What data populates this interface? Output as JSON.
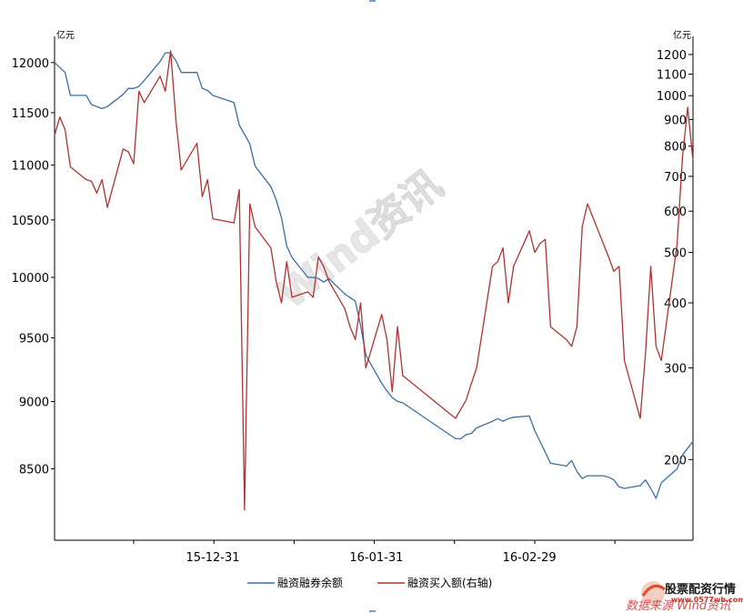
{
  "chart_data": {
    "type": "line",
    "unit_left": "亿元",
    "unit_right": "亿元",
    "x_tick_labels": [
      "15-12-31",
      "16-01-31",
      "16-02-29"
    ],
    "x_range": [
      "2015-12-01",
      "2016-03-31"
    ],
    "y_left": {
      "range": [
        8000,
        12270
      ],
      "ticks": [
        8500,
        9000,
        9500,
        10000,
        10500,
        11000,
        11500,
        12000
      ],
      "scale": "log"
    },
    "y_right": {
      "range": [
        140,
        1300
      ],
      "ticks": [
        200,
        300,
        400,
        500,
        600,
        700,
        800,
        900,
        1000,
        1100,
        1200
      ],
      "scale": "log"
    },
    "grid": false,
    "legend_placement": "bottom",
    "series": [
      {
        "name": "融资融券余额",
        "axis": "left",
        "color": "#3b6fa0",
        "points": [
          [
            "2015-12-01",
            12000
          ],
          [
            "2015-12-02",
            11950
          ],
          [
            "2015-12-03",
            11900
          ],
          [
            "2015-12-04",
            11670
          ],
          [
            "2015-12-07",
            11670
          ],
          [
            "2015-12-08",
            11580
          ],
          [
            "2015-12-09",
            11560
          ],
          [
            "2015-12-10",
            11540
          ],
          [
            "2015-12-11",
            11560
          ],
          [
            "2015-12-14",
            11680
          ],
          [
            "2015-12-15",
            11740
          ],
          [
            "2015-12-16",
            11740
          ],
          [
            "2015-12-17",
            11760
          ],
          [
            "2015-12-18",
            11820
          ],
          [
            "2015-12-21",
            12010
          ],
          [
            "2015-12-22",
            12100
          ],
          [
            "2015-12-23",
            12100
          ],
          [
            "2015-12-24",
            12020
          ],
          [
            "2015-12-25",
            11900
          ],
          [
            "2015-12-28",
            11900
          ],
          [
            "2015-12-29",
            11740
          ],
          [
            "2015-12-30",
            11720
          ],
          [
            "2015-12-31",
            11670
          ],
          [
            "2016-01-04",
            11600
          ],
          [
            "2016-01-05",
            11380
          ],
          [
            "2016-01-06",
            11290
          ],
          [
            "2016-01-07",
            11200
          ],
          [
            "2016-01-08",
            10990
          ],
          [
            "2016-01-11",
            10800
          ],
          [
            "2016-01-12",
            10680
          ],
          [
            "2016-01-13",
            10520
          ],
          [
            "2016-01-14",
            10270
          ],
          [
            "2016-01-15",
            10170
          ],
          [
            "2016-01-18",
            10000
          ],
          [
            "2016-01-19",
            10000
          ],
          [
            "2016-01-20",
            9990
          ],
          [
            "2016-01-21",
            9960
          ],
          [
            "2016-01-22",
            9990
          ],
          [
            "2016-01-25",
            9860
          ],
          [
            "2016-01-26",
            9830
          ],
          [
            "2016-01-27",
            9800
          ],
          [
            "2016-01-28",
            9600
          ],
          [
            "2016-01-29",
            9360
          ],
          [
            "2016-02-01",
            9140
          ],
          [
            "2016-02-02",
            9080
          ],
          [
            "2016-02-03",
            9030
          ],
          [
            "2016-02-04",
            9000
          ],
          [
            "2016-02-05",
            8990
          ],
          [
            "2016-02-15",
            8720
          ],
          [
            "2016-02-16",
            8720
          ],
          [
            "2016-02-17",
            8750
          ],
          [
            "2016-02-18",
            8760
          ],
          [
            "2016-02-19",
            8800
          ],
          [
            "2016-02-22",
            8850
          ],
          [
            "2016-02-23",
            8870
          ],
          [
            "2016-02-24",
            8850
          ],
          [
            "2016-02-25",
            8870
          ],
          [
            "2016-02-26",
            8880
          ],
          [
            "2016-02-29",
            8890
          ],
          [
            "2016-03-01",
            8780
          ],
          [
            "2016-03-02",
            8700
          ],
          [
            "2016-03-03",
            8620
          ],
          [
            "2016-03-04",
            8540
          ],
          [
            "2016-03-07",
            8520
          ],
          [
            "2016-03-08",
            8560
          ],
          [
            "2016-03-09",
            8480
          ],
          [
            "2016-03-10",
            8430
          ],
          [
            "2016-03-11",
            8450
          ],
          [
            "2016-03-14",
            8450
          ],
          [
            "2016-03-15",
            8440
          ],
          [
            "2016-03-16",
            8420
          ],
          [
            "2016-03-17",
            8370
          ],
          [
            "2016-03-18",
            8360
          ],
          [
            "2016-03-21",
            8380
          ],
          [
            "2016-03-22",
            8420
          ],
          [
            "2016-03-23",
            8360
          ],
          [
            "2016-03-24",
            8290
          ],
          [
            "2016-03-25",
            8400
          ],
          [
            "2016-03-28",
            8500
          ],
          [
            "2016-03-29",
            8600
          ],
          [
            "2016-03-30",
            8650
          ],
          [
            "2016-03-31",
            8700
          ]
        ]
      },
      {
        "name": "融资买入额(右轴)",
        "axis": "right",
        "color": "#b03232",
        "points": [
          [
            "2015-12-01",
            840
          ],
          [
            "2015-12-02",
            910
          ],
          [
            "2015-12-03",
            860
          ],
          [
            "2015-12-04",
            730
          ],
          [
            "2015-12-07",
            690
          ],
          [
            "2015-12-08",
            685
          ],
          [
            "2015-12-09",
            650
          ],
          [
            "2015-12-10",
            690
          ],
          [
            "2015-12-11",
            610
          ],
          [
            "2015-12-14",
            790
          ],
          [
            "2015-12-15",
            780
          ],
          [
            "2015-12-16",
            740
          ],
          [
            "2015-12-17",
            1020
          ],
          [
            "2015-12-18",
            970
          ],
          [
            "2015-12-21",
            1090
          ],
          [
            "2015-12-22",
            1020
          ],
          [
            "2015-12-23",
            1220
          ],
          [
            "2015-12-24",
            900
          ],
          [
            "2015-12-25",
            720
          ],
          [
            "2015-12-28",
            810
          ],
          [
            "2015-12-29",
            640
          ],
          [
            "2015-12-30",
            690
          ],
          [
            "2015-12-31",
            580
          ],
          [
            "2016-01-04",
            570
          ],
          [
            "2016-01-05",
            660
          ],
          [
            "2016-01-06",
            160
          ],
          [
            "2016-01-07",
            620
          ],
          [
            "2016-01-08",
            560
          ],
          [
            "2016-01-11",
            510
          ],
          [
            "2016-01-12",
            440
          ],
          [
            "2016-01-13",
            400
          ],
          [
            "2016-01-14",
            480
          ],
          [
            "2016-01-15",
            410
          ],
          [
            "2016-01-18",
            420
          ],
          [
            "2016-01-19",
            410
          ],
          [
            "2016-01-20",
            490
          ],
          [
            "2016-01-21",
            470
          ],
          [
            "2016-01-22",
            440
          ],
          [
            "2016-01-25",
            390
          ],
          [
            "2016-01-26",
            360
          ],
          [
            "2016-01-27",
            340
          ],
          [
            "2016-01-28",
            400
          ],
          [
            "2016-01-29",
            300
          ],
          [
            "2016-02-01",
            380
          ],
          [
            "2016-02-02",
            340
          ],
          [
            "2016-02-03",
            270
          ],
          [
            "2016-02-04",
            360
          ],
          [
            "2016-02-05",
            290
          ],
          [
            "2016-02-15",
            240
          ],
          [
            "2016-02-16",
            250
          ],
          [
            "2016-02-17",
            260
          ],
          [
            "2016-02-18",
            280
          ],
          [
            "2016-02-19",
            300
          ],
          [
            "2016-02-22",
            470
          ],
          [
            "2016-02-23",
            480
          ],
          [
            "2016-02-24",
            510
          ],
          [
            "2016-02-25",
            400
          ],
          [
            "2016-02-26",
            470
          ],
          [
            "2016-02-29",
            550
          ],
          [
            "2016-03-01",
            500
          ],
          [
            "2016-03-02",
            520
          ],
          [
            "2016-03-03",
            530
          ],
          [
            "2016-03-04",
            360
          ],
          [
            "2016-03-07",
            340
          ],
          [
            "2016-03-08",
            330
          ],
          [
            "2016-03-09",
            360
          ],
          [
            "2016-03-10",
            560
          ],
          [
            "2016-03-11",
            620
          ],
          [
            "2016-03-14",
            520
          ],
          [
            "2016-03-15",
            490
          ],
          [
            "2016-03-16",
            460
          ],
          [
            "2016-03-17",
            470
          ],
          [
            "2016-03-18",
            310
          ],
          [
            "2016-03-21",
            240
          ],
          [
            "2016-03-22",
            320
          ],
          [
            "2016-03-23",
            470
          ],
          [
            "2016-03-24",
            330
          ],
          [
            "2016-03-25",
            310
          ],
          [
            "2016-03-28",
            520
          ],
          [
            "2016-03-29",
            760
          ],
          [
            "2016-03-30",
            950
          ],
          [
            "2016-03-31",
            750
          ]
        ]
      }
    ]
  },
  "watermark": {
    "center_text": "Wind资讯",
    "bottom_right_text": "数据来源 Wind资讯",
    "logo_title": "股票配资行情",
    "logo_url": "www.0577wb.com"
  }
}
